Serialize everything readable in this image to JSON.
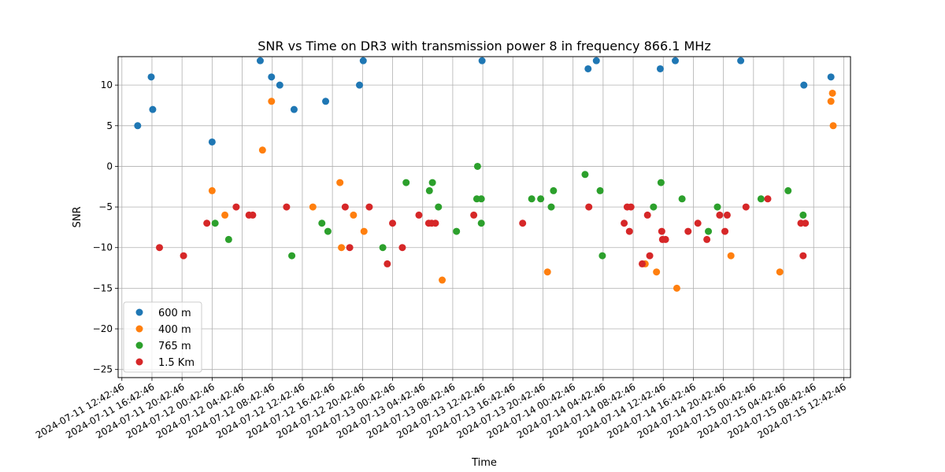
{
  "chart_data": {
    "type": "scatter",
    "title": "SNR vs Time on DR3 with transmission power 8 in frequency 866.1 MHz",
    "xlabel": "Time",
    "ylabel": "SNR",
    "x_unit": "hours since 2024-07-11 12:42:46",
    "xlim": [
      -0.5,
      96.9
    ],
    "ylim": [
      -26,
      13.5
    ],
    "xticks": [
      {
        "value": 0,
        "label": "2024-07-11 12:42:46"
      },
      {
        "value": 4,
        "label": "2024-07-11 16:42:46"
      },
      {
        "value": 8,
        "label": "2024-07-11 20:42:46"
      },
      {
        "value": 12,
        "label": "2024-07-12 00:42:46"
      },
      {
        "value": 16,
        "label": "2024-07-12 04:42:46"
      },
      {
        "value": 20,
        "label": "2024-07-12 08:42:46"
      },
      {
        "value": 24,
        "label": "2024-07-12 12:42:46"
      },
      {
        "value": 28,
        "label": "2024-07-12 16:42:46"
      },
      {
        "value": 32,
        "label": "2024-07-12 20:42:46"
      },
      {
        "value": 36,
        "label": "2024-07-13 00:42:46"
      },
      {
        "value": 40,
        "label": "2024-07-13 04:42:46"
      },
      {
        "value": 44,
        "label": "2024-07-13 08:42:46"
      },
      {
        "value": 48,
        "label": "2024-07-13 12:42:46"
      },
      {
        "value": 52,
        "label": "2024-07-13 16:42:46"
      },
      {
        "value": 56,
        "label": "2024-07-13 20:42:46"
      },
      {
        "value": 60,
        "label": "2024-07-14 00:42:46"
      },
      {
        "value": 64,
        "label": "2024-07-14 04:42:46"
      },
      {
        "value": 68,
        "label": "2024-07-14 08:42:46"
      },
      {
        "value": 72,
        "label": "2024-07-14 12:42:46"
      },
      {
        "value": 76,
        "label": "2024-07-14 16:42:46"
      },
      {
        "value": 80,
        "label": "2024-07-14 20:42:46"
      },
      {
        "value": 84,
        "label": "2024-07-15 00:42:46"
      },
      {
        "value": 88,
        "label": "2024-07-15 04:42:46"
      },
      {
        "value": 92,
        "label": "2024-07-15 08:42:46"
      },
      {
        "value": 96,
        "label": "2024-07-15 12:42:46"
      }
    ],
    "yticks": [
      -25,
      -20,
      -15,
      -10,
      -5,
      0,
      5,
      10
    ],
    "grid": true,
    "legend_position": "lower-left",
    "series": [
      {
        "name": "600 m",
        "color": "#1f77b4",
        "points": [
          [
            2.1,
            5
          ],
          [
            3.9,
            11
          ],
          [
            4.1,
            7
          ],
          [
            12.0,
            3
          ],
          [
            18.4,
            13
          ],
          [
            19.9,
            11
          ],
          [
            21.0,
            10
          ],
          [
            22.9,
            7
          ],
          [
            27.1,
            8
          ],
          [
            31.6,
            10
          ],
          [
            32.1,
            13
          ],
          [
            47.9,
            13
          ],
          [
            62.0,
            12
          ],
          [
            63.1,
            13
          ],
          [
            71.6,
            12
          ],
          [
            73.6,
            13
          ],
          [
            82.3,
            13
          ],
          [
            90.7,
            10
          ],
          [
            94.3,
            11
          ]
        ]
      },
      {
        "name": "400 m",
        "color": "#ff7f0e",
        "points": [
          [
            12.0,
            -3
          ],
          [
            13.7,
            -6
          ],
          [
            18.7,
            2
          ],
          [
            19.9,
            8
          ],
          [
            25.4,
            -5
          ],
          [
            29.0,
            -2
          ],
          [
            29.2,
            -10
          ],
          [
            30.8,
            -6
          ],
          [
            32.2,
            -8
          ],
          [
            42.6,
            -14
          ],
          [
            56.6,
            -13
          ],
          [
            69.6,
            -12
          ],
          [
            71.1,
            -13
          ],
          [
            73.8,
            -15
          ],
          [
            81.0,
            -11
          ],
          [
            87.5,
            -13
          ],
          [
            94.3,
            8
          ],
          [
            94.5,
            9
          ],
          [
            94.6,
            5
          ]
        ]
      },
      {
        "name": "765 m",
        "color": "#2ca02c",
        "points": [
          [
            12.4,
            -7
          ],
          [
            14.2,
            -9
          ],
          [
            22.6,
            -11
          ],
          [
            26.6,
            -7
          ],
          [
            27.4,
            -8
          ],
          [
            34.7,
            -10
          ],
          [
            37.8,
            -2
          ],
          [
            40.9,
            -3
          ],
          [
            41.3,
            -2
          ],
          [
            42.1,
            -5
          ],
          [
            44.5,
            -8
          ],
          [
            47.3,
            0
          ],
          [
            47.2,
            -4
          ],
          [
            47.8,
            -4
          ],
          [
            47.8,
            -7
          ],
          [
            54.5,
            -4
          ],
          [
            55.7,
            -4
          ],
          [
            57.1,
            -5
          ],
          [
            57.4,
            -3
          ],
          [
            61.6,
            -1
          ],
          [
            63.6,
            -3
          ],
          [
            63.9,
            -11
          ],
          [
            70.7,
            -5
          ],
          [
            71.7,
            -2
          ],
          [
            74.5,
            -4
          ],
          [
            78.0,
            -8
          ],
          [
            79.2,
            -5
          ],
          [
            85.0,
            -4
          ],
          [
            88.6,
            -3
          ],
          [
            90.6,
            -6
          ]
        ]
      },
      {
        "name": "1.5 Km",
        "color": "#d62728",
        "points": [
          [
            5.0,
            -10
          ],
          [
            8.2,
            -11
          ],
          [
            11.3,
            -7
          ],
          [
            15.2,
            -5
          ],
          [
            16.9,
            -6
          ],
          [
            17.4,
            -6
          ],
          [
            21.9,
            -5
          ],
          [
            29.7,
            -5
          ],
          [
            30.3,
            -10
          ],
          [
            32.9,
            -5
          ],
          [
            35.3,
            -12
          ],
          [
            36.0,
            -7
          ],
          [
            37.3,
            -10
          ],
          [
            39.5,
            -6
          ],
          [
            40.8,
            -7
          ],
          [
            41.2,
            -7
          ],
          [
            41.7,
            -7
          ],
          [
            46.8,
            -6
          ],
          [
            53.3,
            -7
          ],
          [
            62.1,
            -5
          ],
          [
            66.8,
            -7
          ],
          [
            67.2,
            -5
          ],
          [
            67.5,
            -8
          ],
          [
            67.7,
            -5
          ],
          [
            69.2,
            -12
          ],
          [
            69.9,
            -6
          ],
          [
            70.2,
            -11
          ],
          [
            71.8,
            -8
          ],
          [
            71.9,
            -9
          ],
          [
            72.3,
            -9
          ],
          [
            75.3,
            -8
          ],
          [
            76.6,
            -7
          ],
          [
            77.8,
            -9
          ],
          [
            79.5,
            -6
          ],
          [
            80.2,
            -8
          ],
          [
            80.5,
            -6
          ],
          [
            83.0,
            -5
          ],
          [
            85.9,
            -4
          ],
          [
            90.3,
            -7
          ],
          [
            90.6,
            -11
          ],
          [
            90.9,
            -7
          ]
        ]
      }
    ]
  }
}
